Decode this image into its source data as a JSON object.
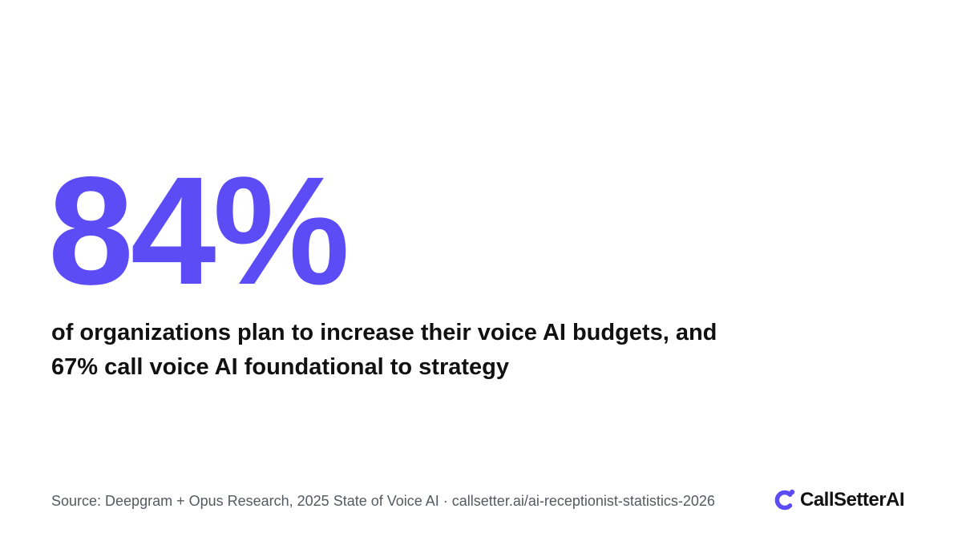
{
  "headline_stat": "84%",
  "description": {
    "line1": "of organizations plan to increase their voice AI budgets, and",
    "line2": "67% call voice AI foundational to strategy"
  },
  "footer": {
    "source": "Source: Deepgram + Opus Research, 2025 State of Voice AI · callsetter.ai/ai-receptionist-statistics-2026"
  },
  "brand": {
    "name": "CallSetterAI",
    "icon": "callsetter-logo-icon"
  },
  "colors": {
    "accent": "#5b4cf5",
    "text": "#111111",
    "muted": "#555a61",
    "background": "#ffffff"
  }
}
